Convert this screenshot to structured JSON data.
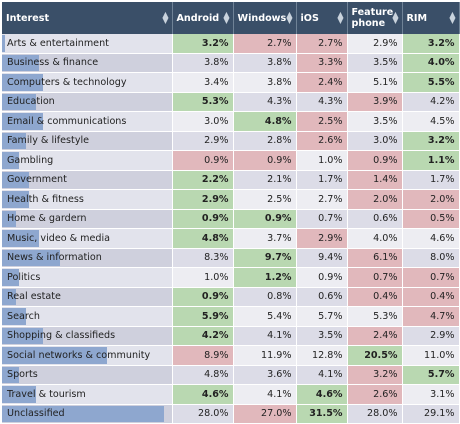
{
  "table": {
    "headers": [
      "Interest",
      "Android",
      "Windows",
      "iOS",
      "Feature phone",
      "RIM"
    ],
    "sort_icon": "sort-arrows-icon",
    "colors": {
      "header_bg": "#3a4f68",
      "high": "#b9d8b1",
      "low": "#e1b8bc",
      "bar": "#8ea7cf"
    },
    "rows": [
      {
        "interest": "Arts & entertainment",
        "bar": 0.02,
        "values": [
          "3.2%",
          "2.7%",
          "2.7%",
          "2.9%",
          "3.2%"
        ],
        "status": [
          "hi",
          "lo",
          "lo",
          "",
          "hi"
        ]
      },
      {
        "interest": "Business & finance",
        "bar": 0.22,
        "values": [
          "3.8%",
          "3.8%",
          "3.3%",
          "3.5%",
          "4.0%"
        ],
        "status": [
          "",
          "",
          "lo",
          "",
          "hi"
        ]
      },
      {
        "interest": "Computers & technology",
        "bar": 0.24,
        "values": [
          "3.4%",
          "3.8%",
          "2.4%",
          "5.1%",
          "5.5%"
        ],
        "status": [
          "",
          "",
          "lo",
          "",
          "hi"
        ]
      },
      {
        "interest": "Education",
        "bar": 0.2,
        "values": [
          "5.3%",
          "4.3%",
          "4.3%",
          "3.9%",
          "4.2%"
        ],
        "status": [
          "hi",
          "",
          "",
          "lo",
          ""
        ]
      },
      {
        "interest": "Email & communications",
        "bar": 0.24,
        "values": [
          "3.0%",
          "4.8%",
          "2.5%",
          "3.5%",
          "4.5%"
        ],
        "status": [
          "",
          "hi",
          "lo",
          "",
          ""
        ]
      },
      {
        "interest": "Family & lifestyle",
        "bar": 0.14,
        "values": [
          "2.9%",
          "2.8%",
          "2.6%",
          "3.0%",
          "3.2%"
        ],
        "status": [
          "",
          "",
          "lo",
          "",
          "hi"
        ]
      },
      {
        "interest": "Gambling",
        "bar": 0.1,
        "values": [
          "0.9%",
          "0.9%",
          "1.0%",
          "0.9%",
          "1.1%"
        ],
        "status": [
          "lo",
          "lo",
          "",
          "lo",
          "hi"
        ]
      },
      {
        "interest": "Government",
        "bar": 0.16,
        "values": [
          "2.2%",
          "2.1%",
          "1.7%",
          "1.4%",
          "1.7%"
        ],
        "status": [
          "hi",
          "",
          "",
          "lo",
          ""
        ]
      },
      {
        "interest": "Health & fitness",
        "bar": 0.16,
        "values": [
          "2.9%",
          "2.5%",
          "2.7%",
          "2.0%",
          "2.0%"
        ],
        "status": [
          "hi",
          "",
          "",
          "lo",
          "lo"
        ]
      },
      {
        "interest": "Home & gardern",
        "bar": 0.08,
        "values": [
          "0.9%",
          "0.9%",
          "0.7%",
          "0.6%",
          "0.5%"
        ],
        "status": [
          "hi",
          "hi",
          "",
          "",
          "lo"
        ]
      },
      {
        "interest": "Music, video & media",
        "bar": 0.22,
        "values": [
          "4.8%",
          "3.7%",
          "2.9%",
          "4.0%",
          "4.6%"
        ],
        "status": [
          "hi",
          "",
          "lo",
          "",
          ""
        ]
      },
      {
        "interest": "News & information",
        "bar": 0.34,
        "values": [
          "8.3%",
          "9.7%",
          "9.4%",
          "6.1%",
          "8.0%"
        ],
        "status": [
          "",
          "hi",
          "",
          "lo",
          ""
        ]
      },
      {
        "interest": "Politics",
        "bar": 0.1,
        "values": [
          "1.0%",
          "1.2%",
          "0.9%",
          "0.7%",
          "0.7%"
        ],
        "status": [
          "",
          "hi",
          "",
          "lo",
          "lo"
        ]
      },
      {
        "interest": "Real estate",
        "bar": 0.08,
        "values": [
          "0.9%",
          "0.8%",
          "0.6%",
          "0.4%",
          "0.4%"
        ],
        "status": [
          "hi",
          "",
          "",
          "lo",
          "lo"
        ]
      },
      {
        "interest": "Search",
        "bar": 0.14,
        "values": [
          "5.9%",
          "5.4%",
          "5.7%",
          "5.3%",
          "4.7%"
        ],
        "status": [
          "hi",
          "",
          "",
          "",
          "lo"
        ]
      },
      {
        "interest": "Shopping & classifieds",
        "bar": 0.24,
        "values": [
          "4.2%",
          "4.1%",
          "3.5%",
          "2.4%",
          "2.9%"
        ],
        "status": [
          "hi",
          "",
          "",
          "lo",
          ""
        ]
      },
      {
        "interest": "Social networks & community",
        "bar": 0.62,
        "values": [
          "8.9%",
          "11.9%",
          "12.8%",
          "20.5%",
          "11.0%"
        ],
        "status": [
          "lo",
          "",
          "",
          "hi",
          ""
        ]
      },
      {
        "interest": "Sports",
        "bar": 0.1,
        "values": [
          "4.8%",
          "3.6%",
          "4.1%",
          "3.2%",
          "5.7%"
        ],
        "status": [
          "",
          "",
          "",
          "lo",
          "hi"
        ]
      },
      {
        "interest": "Travel & tourism",
        "bar": 0.2,
        "values": [
          "4.6%",
          "4.1%",
          "4.6%",
          "2.6%",
          "3.1%"
        ],
        "status": [
          "hi",
          "",
          "hi",
          "lo",
          ""
        ]
      },
      {
        "interest": "Unclassified",
        "bar": 0.95,
        "values": [
          "28.0%",
          "27.0%",
          "31.5%",
          "28.0%",
          "29.1%"
        ],
        "status": [
          "",
          "lo",
          "hi",
          "",
          ""
        ]
      }
    ]
  }
}
